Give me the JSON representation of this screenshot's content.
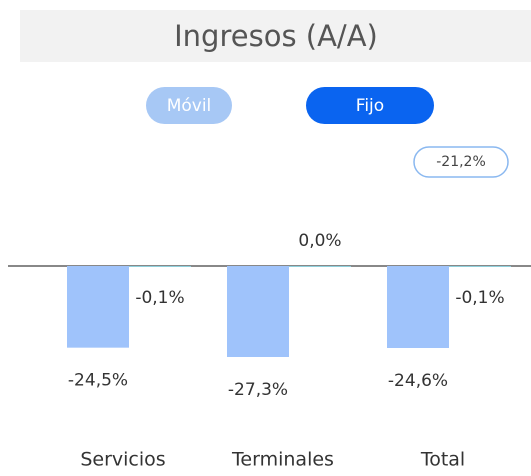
{
  "chart_data": {
    "type": "bar",
    "title": "Ingresos (A/A)",
    "toggle": {
      "options": [
        "Móvil",
        "Fijo"
      ],
      "selected": 1
    },
    "badge": "-21,2%",
    "categories": [
      "Servicios",
      "Terminales",
      "Total"
    ],
    "series": [
      {
        "color": "#9fc3fb",
        "values": [
          -24.5,
          -27.3,
          -24.6
        ],
        "value_labels": [
          "-24,5%",
          "-27,3%",
          "-24,6%"
        ]
      },
      {
        "color": "#8fd0dc",
        "values": [
          -0.1,
          0.0,
          -0.1
        ],
        "value_labels": [
          "-0,1%",
          "0,0%",
          "-0,1%"
        ]
      }
    ],
    "ylim": [
      -30,
      0
    ]
  }
}
